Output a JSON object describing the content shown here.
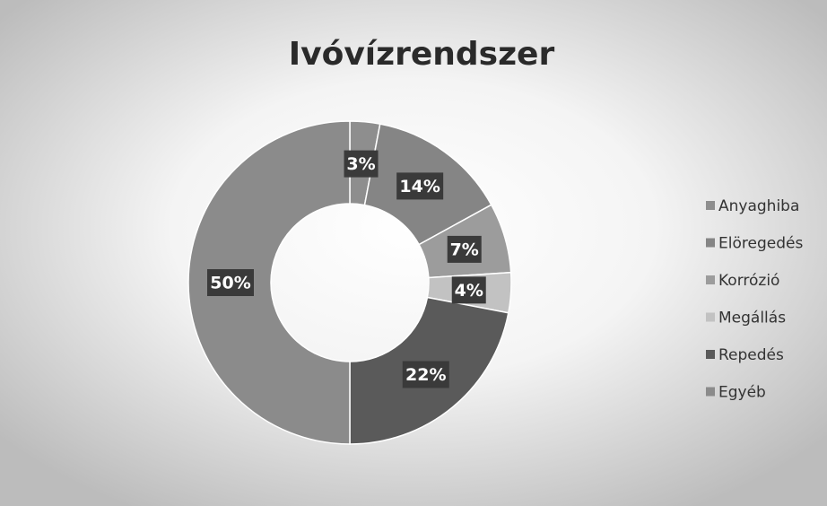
{
  "chart_data": {
    "type": "donut",
    "title": "Ivóvízrendszer",
    "categories": [
      "Anyaghiba",
      "Elöregedés",
      "Korrózió",
      "Megállás",
      "Repedés",
      "Egyéb"
    ],
    "values": [
      3,
      14,
      7,
      4,
      22,
      50
    ],
    "value_labels": [
      "3%",
      "14%",
      "7%",
      "4%",
      "22%",
      "50%"
    ],
    "colors": [
      "#8e8e8e",
      "#858585",
      "#9c9c9c",
      "#c2c2c2",
      "#5a5a5a",
      "#8b8b8b"
    ],
    "legend": "right"
  }
}
